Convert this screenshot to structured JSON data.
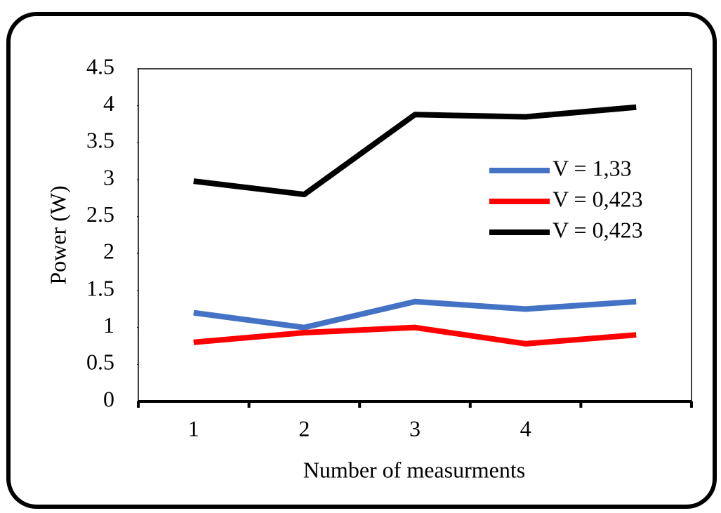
{
  "chart_data": {
    "type": "line",
    "x_label": "Number of measurments",
    "y_label": "Power (W)",
    "categories": [
      "1",
      "2",
      "3",
      "4",
      null
    ],
    "series": [
      {
        "name": "V = 1,33",
        "color": "#4472c4",
        "values": [
          1.2,
          1.0,
          1.35,
          1.25,
          1.35
        ]
      },
      {
        "name": "V = 0,423",
        "color": "#ff0000",
        "values": [
          0.8,
          0.93,
          1.0,
          0.78,
          0.9
        ]
      },
      {
        "name": "V = 0,423",
        "color": "#000000",
        "values": [
          2.98,
          2.8,
          3.88,
          3.85,
          3.98
        ]
      }
    ],
    "ylim": [
      0,
      4.5
    ],
    "yticks": [
      0,
      0.5,
      1,
      1.5,
      2,
      2.5,
      3,
      3.5,
      4,
      4.5
    ],
    "grid": false,
    "legend": "right"
  }
}
